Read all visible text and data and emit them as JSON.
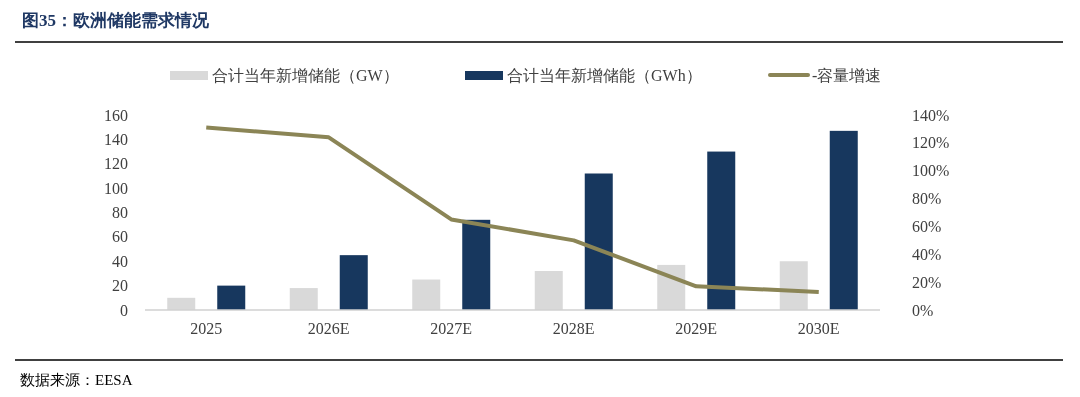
{
  "chart_data": {
    "type": "bar",
    "title": "图35：欧洲储能需求情况",
    "annotations": [
      "数据来源：EESA"
    ],
    "categories": [
      "2025",
      "2026E",
      "2027E",
      "2028E",
      "2029E",
      "2030E"
    ],
    "series": [
      {
        "name": "合计当年新增储能（GW）",
        "color": "#d9d9d9",
        "values": [
          10,
          18,
          25,
          32,
          37,
          40
        ]
      },
      {
        "name": "合计当年新增储能（GWh）",
        "color": "#17375e",
        "values": [
          20,
          45,
          74,
          112,
          130,
          147
        ]
      },
      {
        "name": "-容量增速",
        "type": "line",
        "axis": "y2",
        "color": "#8b8556",
        "values": [
          131,
          124,
          65,
          50,
          17,
          13
        ]
      }
    ],
    "ylim": [
      0,
      160
    ],
    "yticks": [
      0,
      20,
      40,
      60,
      80,
      100,
      120,
      140,
      160
    ],
    "y2lim": [
      0,
      140
    ],
    "y2ticks": [
      {
        "value": 0,
        "label": "0%"
      },
      {
        "value": 20,
        "label": "20%"
      },
      {
        "value": 40,
        "label": "40%"
      },
      {
        "value": 60,
        "label": "60%"
      },
      {
        "value": 80,
        "label": "80%"
      },
      {
        "value": 100,
        "label": "100%"
      },
      {
        "value": 120,
        "label": "120%"
      },
      {
        "value": 140,
        "label": "140%"
      }
    ],
    "legend": "top",
    "grid": false,
    "marker": "none",
    "line_style": "solid"
  }
}
